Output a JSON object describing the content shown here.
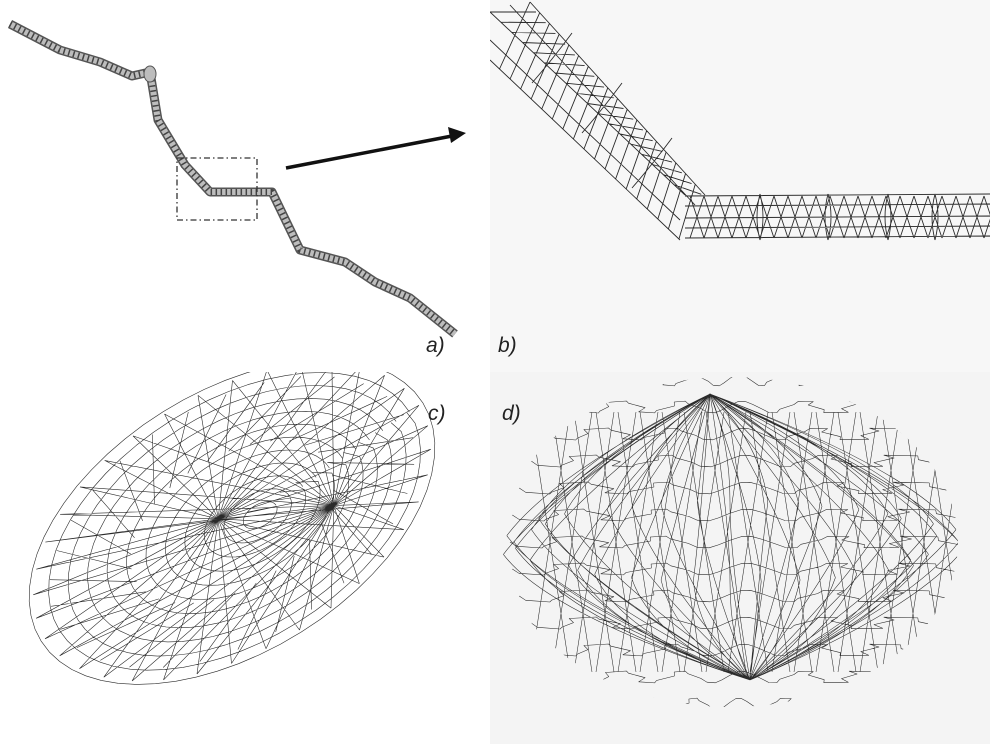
{
  "panels": {
    "a": {
      "label": "a)"
    },
    "b": {
      "label": "b)"
    },
    "c": {
      "label": "c)"
    },
    "d": {
      "label": "d)"
    }
  },
  "colors": {
    "wire": "#2a2a2a",
    "tube_fill": "#bdbdbd",
    "arrow": "#111111"
  }
}
